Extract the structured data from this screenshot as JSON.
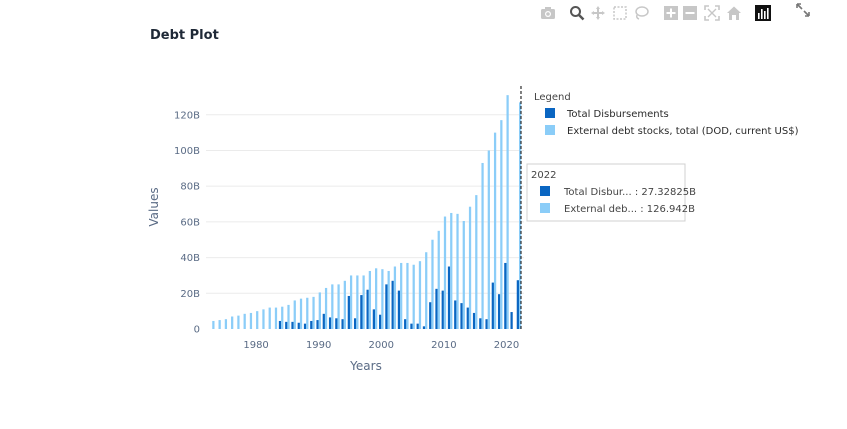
{
  "page": {
    "title": "Debt Plot"
  },
  "toolbar": {
    "buttons": [
      {
        "name": "camera-icon",
        "label": "Download plot as a png"
      },
      {
        "name": "zoom-icon",
        "label": "Zoom"
      },
      {
        "name": "pan-icon",
        "label": "Pan"
      },
      {
        "name": "box-select-icon",
        "label": "Box Select"
      },
      {
        "name": "lasso-select-icon",
        "label": "Lasso Select"
      },
      {
        "name": "zoom-in-icon",
        "label": "Zoom in"
      },
      {
        "name": "zoom-out-icon",
        "label": "Zoom out"
      },
      {
        "name": "autoscale-icon",
        "label": "Autoscale"
      },
      {
        "name": "reset-axes-icon",
        "label": "Reset axes"
      },
      {
        "name": "plotly-logo-icon",
        "label": "Produced with Plotly"
      }
    ]
  },
  "chart_data": {
    "type": "bar",
    "title": "",
    "xlabel": "Years",
    "ylabel": "Values",
    "ylim": [
      0,
      135
    ],
    "xlim": [
      1972,
      2022.8
    ],
    "x_ticks": [
      1980,
      1990,
      2000,
      2010,
      2020
    ],
    "y_ticks": [
      {
        "value": 0,
        "label": "0"
      },
      {
        "value": 20,
        "label": "20B"
      },
      {
        "value": 40,
        "label": "40B"
      },
      {
        "value": 60,
        "label": "60B"
      },
      {
        "value": 80,
        "label": "80B"
      },
      {
        "value": 100,
        "label": "100B"
      },
      {
        "value": 120,
        "label": "120B"
      }
    ],
    "grid": true,
    "legend": {
      "title": "Legend",
      "placement": "top-right",
      "entries": [
        "Total Disbursements",
        "External debt stocks, total (DOD, current US$)"
      ]
    },
    "x": [
      1972,
      1973,
      1974,
      1975,
      1976,
      1977,
      1978,
      1979,
      1980,
      1981,
      1982,
      1983,
      1984,
      1985,
      1986,
      1987,
      1988,
      1989,
      1990,
      1991,
      1992,
      1993,
      1994,
      1995,
      1996,
      1997,
      1998,
      1999,
      2000,
      2001,
      2002,
      2003,
      2004,
      2005,
      2006,
      2007,
      2008,
      2009,
      2010,
      2011,
      2012,
      2013,
      2014,
      2015,
      2016,
      2017,
      2018,
      2019,
      2020,
      2021,
      2022
    ],
    "series": [
      {
        "name": "Total Disbursements",
        "color": "#0a66c2",
        "values": [
          null,
          null,
          null,
          null,
          null,
          null,
          null,
          null,
          null,
          null,
          null,
          null,
          4.5,
          4,
          4,
          3.5,
          3,
          4.5,
          5,
          8.5,
          6.5,
          6,
          5.5,
          18.5,
          6,
          19,
          22,
          11,
          8,
          25,
          27,
          21.5,
          5.5,
          3,
          3,
          1.5,
          15,
          22.5,
          21.5,
          35,
          16,
          14.5,
          12,
          9,
          6,
          5.5,
          26,
          19.5,
          37,
          9.5,
          27.33
        ]
      },
      {
        "name": "External debt stocks, total (DOD, current US$)",
        "color": "#8bcdf8",
        "values": [
          null,
          4.5,
          5,
          5.5,
          7,
          7.5,
          8.5,
          9,
          10,
          11,
          12,
          12,
          12.5,
          13.5,
          16,
          17,
          17.5,
          18,
          20.5,
          23,
          25,
          25,
          27,
          30,
          30,
          30,
          32.5,
          34,
          33.5,
          32.5,
          35,
          37,
          37,
          36,
          38,
          43,
          50,
          55,
          63,
          65,
          64.5,
          60.5,
          68.5,
          75,
          93,
          100,
          110,
          117,
          131,
          null,
          126.94
        ]
      }
    ],
    "hover": {
      "x": 2022,
      "title": "2022",
      "lines": [
        "Total Disbur... : 27.32825B",
        "External deb... : 126.942B"
      ]
    }
  }
}
